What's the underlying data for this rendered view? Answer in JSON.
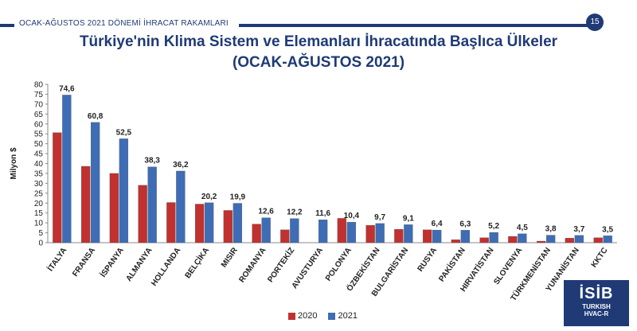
{
  "header": {
    "section": "OCAK-AĞUSTOS 2021 DÖNEMİ İHRACAT RAKAMLARI",
    "page_number": "15"
  },
  "colors": {
    "brand": "#1f3a75",
    "series_2020": "#c0312f",
    "series_2021": "#3e6db5"
  },
  "logo": {
    "name": "İSİB",
    "line1": "TURKISH",
    "line2": "HVAC-R"
  },
  "chart_data": {
    "type": "bar",
    "title": "Türkiye'nin Klima Sistem ve Elemanları İhracatında Başlıca Ülkeler",
    "subtitle": "(OCAK-AĞUSTOS 2021)",
    "xlabel": "",
    "ylabel": "Milyon $",
    "ylim": [
      0,
      80
    ],
    "yticks": [
      0,
      5,
      10,
      15,
      20,
      25,
      30,
      35,
      40,
      45,
      50,
      55,
      60,
      65,
      70,
      75,
      80
    ],
    "grid": false,
    "legend_position": "bottom",
    "categories": [
      "İTALYA",
      "FRANSA",
      "İSPANYA",
      "ALMANYA",
      "HOLLANDA",
      "BELÇİKA",
      "MISIR",
      "ROMANYA",
      "PORTEKİZ",
      "AVUSTURYA",
      "POLONYA",
      "ÖZBEKİSTAN",
      "BULGARİSTAN",
      "RUSYA",
      "PAKİSTAN",
      "HIRVATİSTAN",
      "SLOVENYA",
      "TÜRKMENİSTAN",
      "YUNANİSTAN",
      "KKTC"
    ],
    "series": [
      {
        "name": "2020",
        "values": [
          55.6,
          38.6,
          35.0,
          29.0,
          20.3,
          19.5,
          16.3,
          9.4,
          6.5,
          0,
          12.3,
          8.8,
          6.8,
          6.5,
          1.5,
          2.5,
          3.2,
          0.8,
          2.3,
          2.5
        ]
      },
      {
        "name": "2021",
        "values": [
          74.6,
          60.8,
          52.5,
          38.3,
          36.2,
          20.2,
          19.9,
          12.6,
          12.2,
          11.6,
          10.4,
          9.7,
          9.1,
          6.4,
          6.3,
          5.2,
          4.5,
          3.8,
          3.7,
          3.5
        ]
      }
    ],
    "data_labels_2021": [
      "74,6",
      "60,8",
      "52,5",
      "38,3",
      "36,2",
      "20,2",
      "19,9",
      "12,6",
      "12,2",
      "11,6",
      "10,4",
      "9,7",
      "9,1",
      "6,4",
      "6,3",
      "5,2",
      "4,5",
      "3,8",
      "3,7",
      "3,5"
    ]
  }
}
